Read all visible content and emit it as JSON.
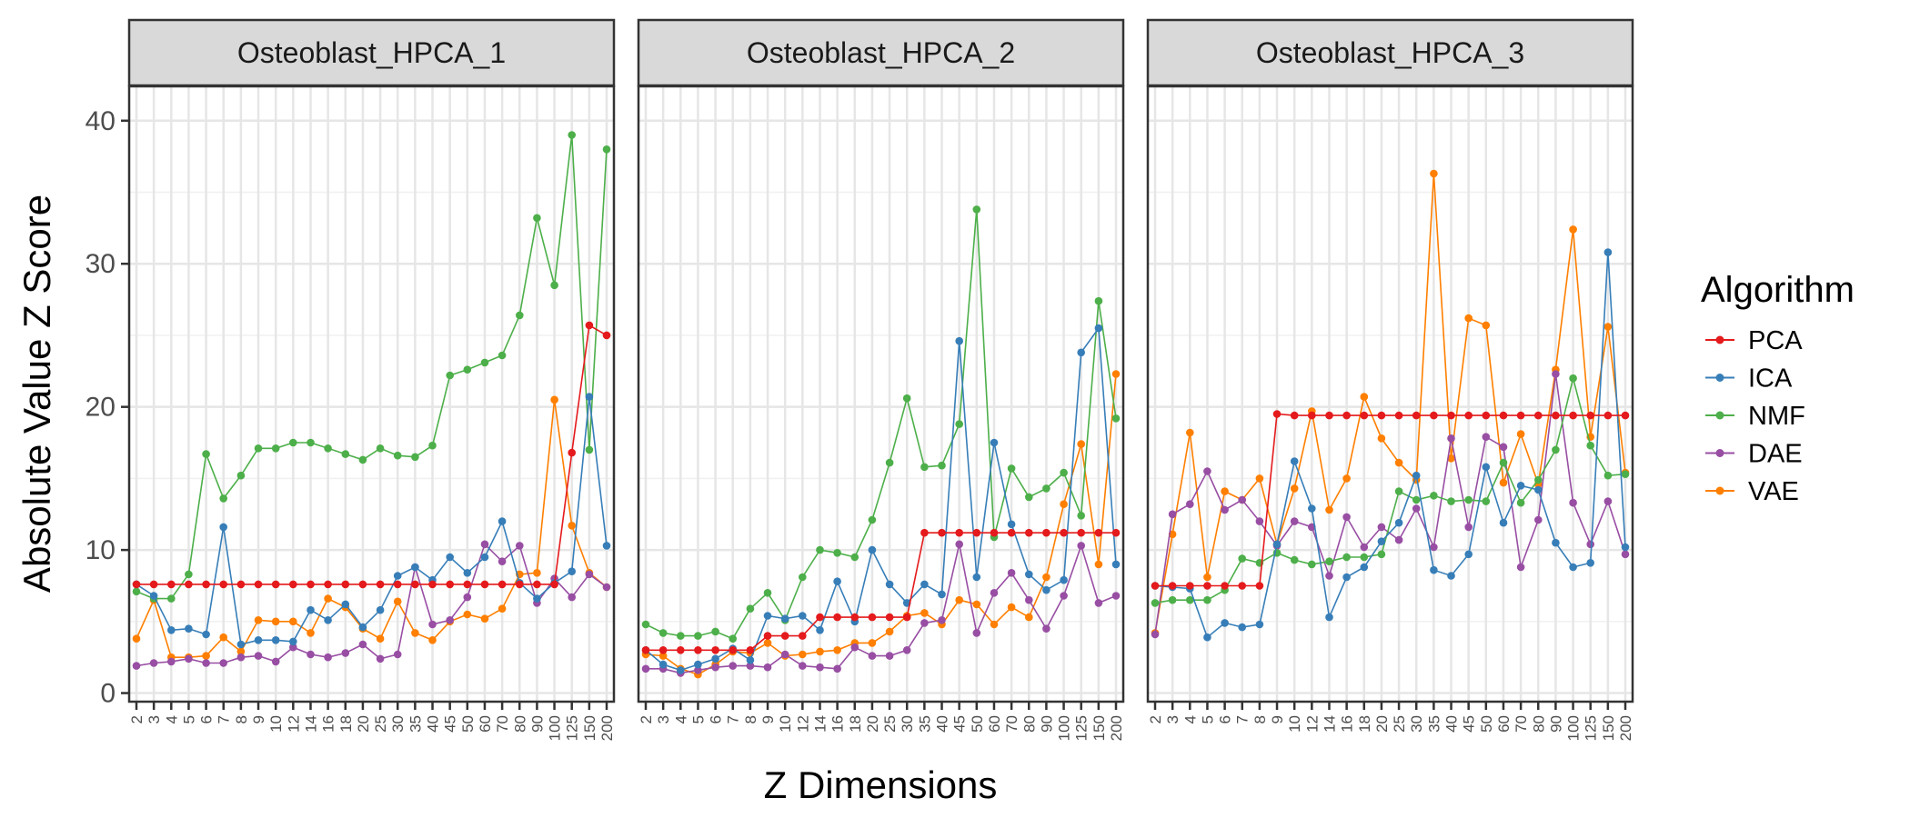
{
  "chart_data": {
    "type": "line",
    "xlabel": "Z Dimensions",
    "ylabel": "Absolute Value Z Score",
    "ylim": [
      0,
      40
    ],
    "yticks": [
      "0",
      "10",
      "20",
      "30",
      "40"
    ],
    "grid": true,
    "legend": {
      "title": "Algorithm",
      "position": "right"
    },
    "categories": [
      "2",
      "3",
      "4",
      "5",
      "6",
      "7",
      "8",
      "9",
      "10",
      "12",
      "14",
      "16",
      "18",
      "20",
      "25",
      "30",
      "35",
      "40",
      "45",
      "50",
      "60",
      "70",
      "80",
      "90",
      "100",
      "125",
      "150",
      "200"
    ],
    "colors": {
      "PCA": "#e41a1c",
      "ICA": "#377eb8",
      "NMF": "#4daf4a",
      "DAE": "#984ea3",
      "VAE": "#ff7f00"
    },
    "series_order": [
      "PCA",
      "ICA",
      "NMF",
      "DAE",
      "VAE"
    ],
    "panels": [
      {
        "title": "Osteoblast_HPCA_1",
        "series": [
          {
            "name": "PCA",
            "values": [
              7.6,
              7.6,
              7.6,
              7.6,
              7.6,
              7.6,
              7.6,
              7.6,
              7.6,
              7.6,
              7.6,
              7.6,
              7.6,
              7.6,
              7.6,
              7.6,
              7.6,
              7.6,
              7.6,
              7.6,
              7.6,
              7.6,
              7.6,
              7.6,
              7.6,
              16.8,
              25.7,
              25.0
            ]
          },
          {
            "name": "ICA",
            "values": [
              7.6,
              6.8,
              4.4,
              4.5,
              4.1,
              11.6,
              3.4,
              3.7,
              3.7,
              3.6,
              5.8,
              5.1,
              6.2,
              4.6,
              5.8,
              8.2,
              8.8,
              7.9,
              9.5,
              8.4,
              9.5,
              12.0,
              7.7,
              6.6,
              7.7,
              8.5,
              20.7,
              10.3
            ]
          },
          {
            "name": "NMF",
            "values": [
              7.1,
              6.6,
              6.6,
              8.3,
              16.7,
              13.6,
              15.2,
              17.1,
              17.1,
              17.5,
              17.5,
              17.1,
              16.7,
              16.3,
              17.1,
              16.6,
              16.5,
              17.3,
              22.2,
              22.6,
              23.1,
              23.6,
              26.4,
              33.2,
              28.5,
              39.0,
              17.0,
              38.0
            ]
          },
          {
            "name": "DAE",
            "values": [
              1.9,
              2.1,
              2.2,
              2.4,
              2.1,
              2.1,
              2.5,
              2.6,
              2.2,
              3.2,
              2.7,
              2.5,
              2.8,
              3.4,
              2.4,
              2.7,
              8.8,
              4.8,
              5.1,
              6.7,
              10.4,
              9.2,
              10.3,
              6.3,
              8.0,
              6.7,
              8.3,
              7.4
            ]
          },
          {
            "name": "VAE",
            "values": [
              3.8,
              6.5,
              2.5,
              2.5,
              2.6,
              3.9,
              2.9,
              5.1,
              5.0,
              5.0,
              4.2,
              6.6,
              6.0,
              4.5,
              3.8,
              6.4,
              4.2,
              3.7,
              5.0,
              5.5,
              5.2,
              5.9,
              8.3,
              8.4,
              20.5,
              11.7,
              8.4,
              7.4
            ]
          }
        ]
      },
      {
        "title": "Osteoblast_HPCA_2",
        "series": [
          {
            "name": "PCA",
            "values": [
              3.0,
              3.0,
              3.0,
              3.0,
              3.0,
              3.0,
              3.0,
              4.0,
              4.0,
              4.0,
              5.3,
              5.3,
              5.3,
              5.3,
              5.3,
              5.3,
              11.2,
              11.2,
              11.2,
              11.2,
              11.2,
              11.2,
              11.2,
              11.2,
              11.2,
              11.2,
              11.2,
              11.2
            ]
          },
          {
            "name": "ICA",
            "values": [
              3.0,
              2.0,
              1.6,
              2.0,
              2.4,
              3.1,
              2.3,
              5.4,
              5.2,
              5.4,
              4.4,
              7.8,
              5.0,
              10.0,
              7.6,
              6.3,
              7.6,
              6.9,
              24.6,
              8.1,
              17.5,
              11.8,
              8.3,
              7.2,
              7.9,
              23.8,
              25.5,
              9.0
            ]
          },
          {
            "name": "NMF",
            "values": [
              4.8,
              4.2,
              4.0,
              4.0,
              4.3,
              3.8,
              5.9,
              7.0,
              5.1,
              8.1,
              10.0,
              9.8,
              9.5,
              12.1,
              16.1,
              20.6,
              15.8,
              15.9,
              18.8,
              33.8,
              10.9,
              15.7,
              13.7,
              14.3,
              15.4,
              12.4,
              27.4,
              19.2
            ]
          },
          {
            "name": "DAE",
            "values": [
              1.7,
              1.7,
              1.4,
              1.6,
              1.8,
              1.9,
              1.9,
              1.8,
              2.7,
              1.9,
              1.8,
              1.7,
              3.2,
              2.6,
              2.6,
              3.0,
              4.9,
              5.1,
              10.4,
              4.2,
              7.0,
              8.4,
              6.5,
              4.5,
              6.8,
              10.3,
              6.3,
              6.8
            ]
          },
          {
            "name": "VAE",
            "values": [
              2.7,
              2.6,
              1.7,
              1.3,
              2.0,
              2.9,
              2.8,
              3.5,
              2.6,
              2.7,
              2.9,
              3.0,
              3.5,
              3.5,
              4.3,
              5.4,
              5.6,
              4.8,
              6.5,
              6.2,
              4.8,
              6.0,
              5.3,
              8.1,
              13.2,
              17.4,
              9.0,
              22.3
            ]
          }
        ]
      },
      {
        "title": "Osteoblast_HPCA_3",
        "series": [
          {
            "name": "PCA",
            "values": [
              7.5,
              7.5,
              7.5,
              7.5,
              7.5,
              7.5,
              7.5,
              19.5,
              19.4,
              19.4,
              19.4,
              19.4,
              19.4,
              19.4,
              19.4,
              19.4,
              19.4,
              19.4,
              19.4,
              19.4,
              19.4,
              19.4,
              19.4,
              19.4,
              19.4,
              19.4,
              19.4,
              19.4
            ]
          },
          {
            "name": "ICA",
            "values": [
              7.5,
              7.4,
              7.3,
              3.9,
              4.9,
              4.6,
              4.8,
              10.4,
              16.2,
              12.9,
              5.3,
              8.1,
              8.8,
              10.6,
              11.9,
              15.2,
              8.6,
              8.2,
              9.7,
              15.8,
              11.9,
              14.5,
              14.2,
              10.5,
              8.8,
              9.1,
              30.8,
              10.2
            ]
          },
          {
            "name": "NMF",
            "values": [
              6.3,
              6.5,
              6.5,
              6.5,
              7.2,
              9.4,
              9.1,
              9.8,
              9.3,
              9.0,
              9.2,
              9.5,
              9.5,
              9.7,
              14.1,
              13.5,
              13.8,
              13.4,
              13.5,
              13.4,
              16.1,
              13.3,
              14.9,
              17.0,
              22.0,
              17.3,
              15.2,
              15.3
            ]
          },
          {
            "name": "DAE",
            "values": [
              4.1,
              12.5,
              13.2,
              15.5,
              12.8,
              13.5,
              12.0,
              10.3,
              12.0,
              11.6,
              8.2,
              12.3,
              10.2,
              11.6,
              10.7,
              12.9,
              10.2,
              17.8,
              11.6,
              17.9,
              17.2,
              8.8,
              12.1,
              22.3,
              13.3,
              10.4,
              13.4,
              9.7
            ]
          },
          {
            "name": "VAE",
            "values": [
              4.2,
              11.1,
              18.2,
              8.1,
              14.1,
              13.5,
              15.0,
              10.4,
              14.3,
              19.7,
              12.8,
              15.0,
              20.7,
              17.8,
              16.1,
              14.9,
              36.3,
              16.4,
              26.2,
              25.7,
              14.7,
              18.1,
              14.6,
              22.6,
              32.4,
              17.9,
              25.6,
              15.4
            ]
          }
        ]
      }
    ]
  }
}
